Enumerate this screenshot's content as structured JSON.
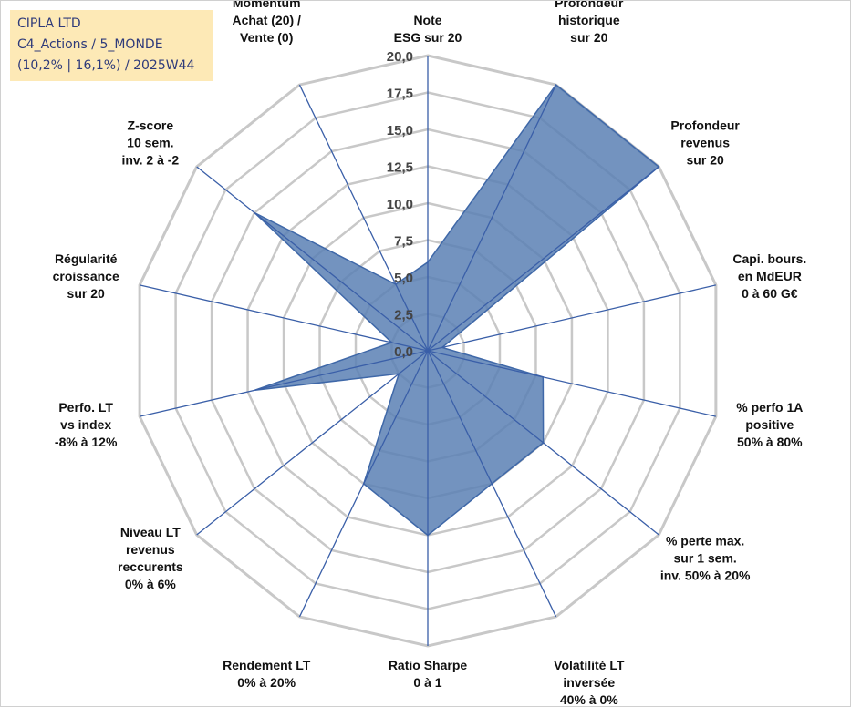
{
  "info": {
    "company": "CIPLA LTD",
    "category": "C4_Actions / 5_MONDE",
    "stats": "(10,2% | 16,1%) / 2025W44"
  },
  "colors": {
    "grid": "#c8c8c8",
    "spoke": "#3a5fa8",
    "fill": "#5b80b4",
    "stroke": "#3f68a8",
    "info_bg": "#fde9b6",
    "info_text": "#2e3a7a"
  },
  "chart_data": {
    "type": "radar",
    "title": "",
    "rmin": 0,
    "rmax": 20,
    "ticks": [
      "0,0",
      "2,5",
      "5,0",
      "7,5",
      "10,0",
      "12,5",
      "15,0",
      "17,5",
      "20,0"
    ],
    "axes": [
      {
        "label": [
          "Note",
          "ESG sur 20"
        ],
        "value": 6.0
      },
      {
        "label": [
          "Profondeur",
          "historique",
          "sur 20"
        ],
        "value": 20.0
      },
      {
        "label": [
          "Profondeur",
          "revenus",
          "sur 20"
        ],
        "value": 20.0
      },
      {
        "label": [
          "Capi. bours.",
          "en MdEUR",
          "0 à 60 G€"
        ],
        "value": 1.0
      },
      {
        "label": [
          "% perfo 1A",
          "positive",
          "50% à 80%"
        ],
        "value": 8.0
      },
      {
        "label": [
          "% perte max.",
          "sur 1 sem.",
          "inv. 50% à 20%"
        ],
        "value": 10.0
      },
      {
        "label": [
          "Volatilité LT",
          "inversée",
          "40% à 0%"
        ],
        "value": 10.0
      },
      {
        "label": [
          "Ratio Sharpe",
          "0 à 1"
        ],
        "value": 12.5
      },
      {
        "label": [
          "Rendement LT",
          "0% à 20%"
        ],
        "value": 10.0
      },
      {
        "label": [
          "Niveau LT",
          "revenus",
          "reccurents",
          "0% à 6%"
        ],
        "value": 2.5
      },
      {
        "label": [
          "Perfo. LT",
          "vs index",
          "-8% à 12%"
        ],
        "value": 12.0
      },
      {
        "label": [
          "Régularité",
          "croissance",
          "sur 20"
        ],
        "value": 2.5
      },
      {
        "label": [
          "Z-score",
          "10 sem.",
          "inv. 2 à -2"
        ],
        "value": 15.0
      },
      {
        "label": [
          "Momentum",
          "Achat (20) /",
          "Vente (0)"
        ],
        "value": 5.0
      }
    ]
  }
}
